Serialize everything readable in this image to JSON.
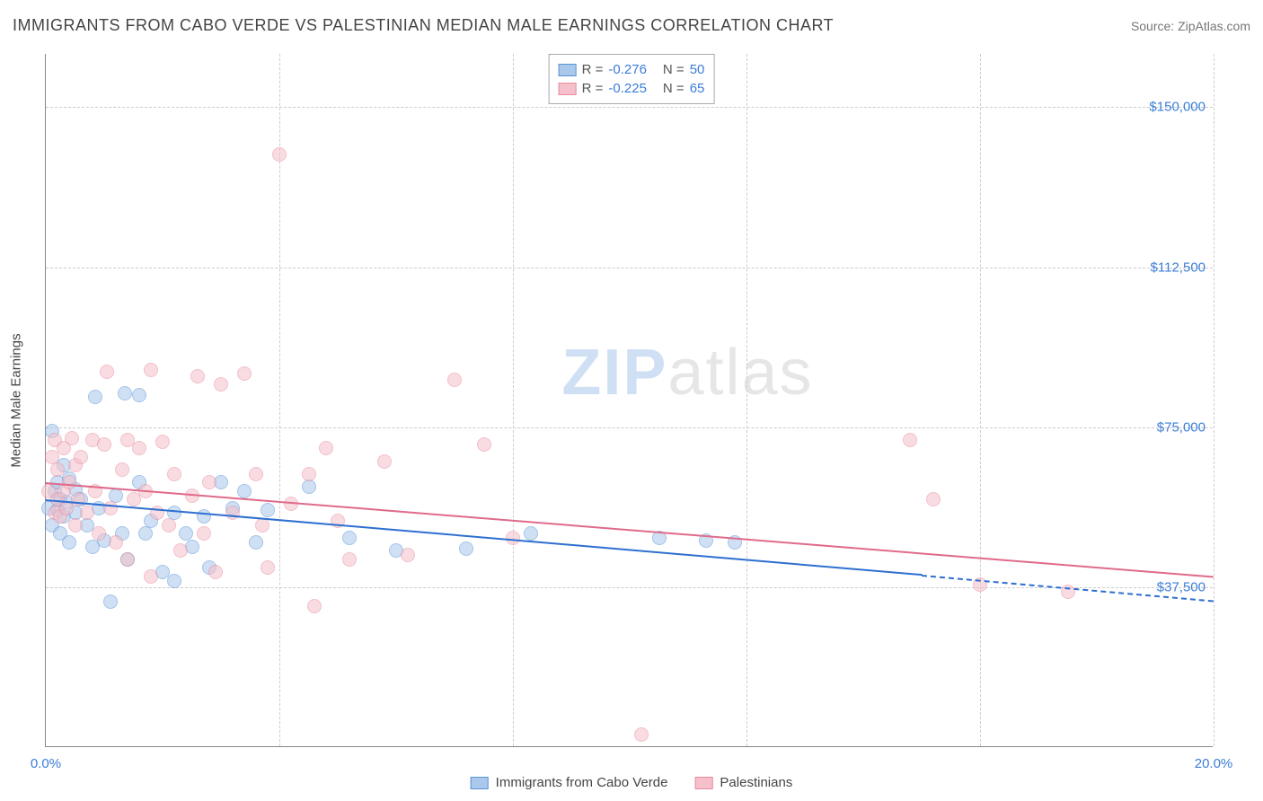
{
  "header": {
    "title": "IMMIGRANTS FROM CABO VERDE VS PALESTINIAN MEDIAN MALE EARNINGS CORRELATION CHART",
    "source_prefix": "Source: ",
    "source": "ZipAtlas.com"
  },
  "ylabel": "Median Male Earnings",
  "watermark": {
    "part1": "ZIP",
    "part2": "atlas"
  },
  "chart": {
    "type": "scatter",
    "background_color": "#ffffff",
    "grid_color": "#cccccc",
    "axis_color": "#888888",
    "xlim": [
      0,
      20
    ],
    "ylim": [
      0,
      162500
    ],
    "x_ticks": [
      0,
      4,
      8,
      12,
      16,
      20
    ],
    "x_tick_labels": [
      "0.0%",
      "",
      "",
      "",
      "",
      "20.0%"
    ],
    "y_ticks": [
      37500,
      75000,
      112500,
      150000
    ],
    "y_tick_labels": [
      "$37,500",
      "$75,000",
      "$112,500",
      "$150,000"
    ],
    "tick_label_color": "#3b7dd8",
    "tick_label_fontsize": 15,
    "marker_radius": 8,
    "marker_opacity": 0.55,
    "series": [
      {
        "name": "Immigrants from Cabo Verde",
        "color_fill": "#a9c8ec",
        "color_stroke": "#5a93d6",
        "trend_color": "#2e6fd0",
        "r_value": "-0.276",
        "n_value": "50",
        "trend": {
          "x1": 0,
          "y1": 58000,
          "x2": 15,
          "y2": 40500,
          "dash_x2": 20,
          "dash_y2": 34500
        },
        "points": [
          [
            0.05,
            56000
          ],
          [
            0.1,
            74000
          ],
          [
            0.1,
            52000
          ],
          [
            0.15,
            60000
          ],
          [
            0.2,
            55500
          ],
          [
            0.2,
            62000
          ],
          [
            0.25,
            58000
          ],
          [
            0.25,
            50000
          ],
          [
            0.3,
            66000
          ],
          [
            0.3,
            54000
          ],
          [
            0.35,
            57500
          ],
          [
            0.4,
            63000
          ],
          [
            0.4,
            48000
          ],
          [
            0.5,
            60500
          ],
          [
            0.5,
            55000
          ],
          [
            0.6,
            58000
          ],
          [
            0.7,
            52000
          ],
          [
            0.8,
            47000
          ],
          [
            0.85,
            82000
          ],
          [
            0.9,
            56000
          ],
          [
            1.0,
            48500
          ],
          [
            1.1,
            34000
          ],
          [
            1.2,
            59000
          ],
          [
            1.3,
            50000
          ],
          [
            1.35,
            83000
          ],
          [
            1.4,
            44000
          ],
          [
            1.6,
            62000
          ],
          [
            1.6,
            82500
          ],
          [
            1.7,
            50000
          ],
          [
            1.8,
            53000
          ],
          [
            2.0,
            41000
          ],
          [
            2.2,
            55000
          ],
          [
            2.2,
            39000
          ],
          [
            2.4,
            50000
          ],
          [
            2.5,
            47000
          ],
          [
            2.7,
            54000
          ],
          [
            2.8,
            42000
          ],
          [
            3.0,
            62000
          ],
          [
            3.2,
            56000
          ],
          [
            3.4,
            60000
          ],
          [
            3.6,
            48000
          ],
          [
            3.8,
            55500
          ],
          [
            4.5,
            61000
          ],
          [
            5.2,
            49000
          ],
          [
            6.0,
            46000
          ],
          [
            7.2,
            46500
          ],
          [
            8.3,
            50000
          ],
          [
            10.5,
            49000
          ],
          [
            11.3,
            48500
          ],
          [
            11.8,
            48000
          ]
        ]
      },
      {
        "name": "Palestinians",
        "color_fill": "#f5c0ca",
        "color_stroke": "#e88ba0",
        "trend_color": "#e06a8a",
        "r_value": "-0.225",
        "n_value": "65",
        "trend": {
          "x1": 0,
          "y1": 62000,
          "x2": 20,
          "y2": 40000
        },
        "points": [
          [
            0.05,
            60000
          ],
          [
            0.1,
            68000
          ],
          [
            0.15,
            72000
          ],
          [
            0.15,
            55000
          ],
          [
            0.2,
            58000
          ],
          [
            0.2,
            65000
          ],
          [
            0.25,
            54000
          ],
          [
            0.3,
            70000
          ],
          [
            0.3,
            60000
          ],
          [
            0.35,
            56000
          ],
          [
            0.4,
            62000
          ],
          [
            0.45,
            72500
          ],
          [
            0.5,
            66000
          ],
          [
            0.5,
            52000
          ],
          [
            0.55,
            58000
          ],
          [
            0.6,
            68000
          ],
          [
            0.7,
            55000
          ],
          [
            0.8,
            72000
          ],
          [
            0.85,
            60000
          ],
          [
            0.9,
            50000
          ],
          [
            1.0,
            71000
          ],
          [
            1.05,
            88000
          ],
          [
            1.1,
            56000
          ],
          [
            1.2,
            48000
          ],
          [
            1.3,
            65000
          ],
          [
            1.4,
            72000
          ],
          [
            1.4,
            44000
          ],
          [
            1.5,
            58000
          ],
          [
            1.6,
            70000
          ],
          [
            1.7,
            60000
          ],
          [
            1.8,
            88500
          ],
          [
            1.8,
            40000
          ],
          [
            1.9,
            55000
          ],
          [
            2.0,
            71500
          ],
          [
            2.1,
            52000
          ],
          [
            2.2,
            64000
          ],
          [
            2.3,
            46000
          ],
          [
            2.5,
            59000
          ],
          [
            2.6,
            87000
          ],
          [
            2.7,
            50000
          ],
          [
            2.8,
            62000
          ],
          [
            2.9,
            41000
          ],
          [
            3.0,
            85000
          ],
          [
            3.2,
            55000
          ],
          [
            3.4,
            87500
          ],
          [
            3.6,
            64000
          ],
          [
            3.7,
            52000
          ],
          [
            3.8,
            42000
          ],
          [
            4.0,
            139000
          ],
          [
            4.2,
            57000
          ],
          [
            4.5,
            64000
          ],
          [
            4.6,
            33000
          ],
          [
            4.8,
            70000
          ],
          [
            5.0,
            53000
          ],
          [
            5.2,
            44000
          ],
          [
            5.8,
            67000
          ],
          [
            6.2,
            45000
          ],
          [
            7.0,
            86000
          ],
          [
            7.5,
            71000
          ],
          [
            8.0,
            49000
          ],
          [
            10.2,
            3000
          ],
          [
            14.8,
            72000
          ],
          [
            15.2,
            58000
          ],
          [
            16.0,
            38000
          ],
          [
            17.5,
            36500
          ]
        ]
      }
    ]
  },
  "legend_bottom": [
    {
      "label": "Immigrants from Cabo Verde",
      "fill": "#a9c8ec",
      "stroke": "#5a93d6"
    },
    {
      "label": "Palestinians",
      "fill": "#f5c0ca",
      "stroke": "#e88ba0"
    }
  ]
}
